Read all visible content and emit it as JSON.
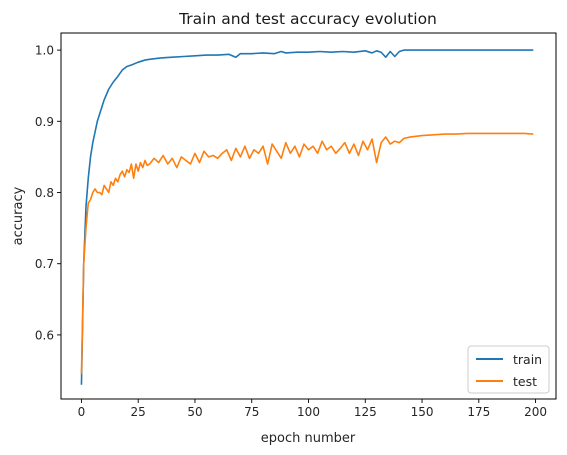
{
  "chart_data": {
    "type": "line",
    "title": "Train and test accuracy evolution",
    "xlabel": "epoch number",
    "ylabel": "accuracy",
    "xlim": [
      -9,
      209
    ],
    "ylim": [
      0.51,
      1.024
    ],
    "x_ticks": [
      0,
      25,
      50,
      75,
      100,
      125,
      150,
      175,
      200
    ],
    "y_ticks": [
      0.6,
      0.7,
      0.8,
      0.9,
      1.0
    ],
    "x_tick_labels": [
      "0",
      "25",
      "50",
      "75",
      "100",
      "125",
      "150",
      "175",
      "200"
    ],
    "y_tick_labels": [
      "0.6",
      "0.7",
      "0.8",
      "0.9",
      "1.0"
    ],
    "grid": false,
    "legend_position": "bottom-right",
    "series": [
      {
        "name": "train",
        "color": "#1f77b4",
        "x": [
          0,
          1,
          2,
          3,
          4,
          5,
          6,
          7,
          8,
          9,
          10,
          12,
          14,
          16,
          18,
          20,
          22,
          25,
          28,
          30,
          35,
          40,
          45,
          50,
          55,
          60,
          65,
          68,
          70,
          75,
          80,
          85,
          88,
          90,
          95,
          100,
          105,
          110,
          115,
          120,
          125,
          128,
          130,
          132,
          134,
          136,
          138,
          140,
          142,
          145,
          150,
          160,
          170,
          180,
          190,
          199
        ],
        "values": [
          0.53,
          0.7,
          0.78,
          0.82,
          0.85,
          0.87,
          0.885,
          0.9,
          0.91,
          0.92,
          0.93,
          0.945,
          0.955,
          0.963,
          0.972,
          0.977,
          0.979,
          0.983,
          0.986,
          0.987,
          0.989,
          0.99,
          0.991,
          0.992,
          0.993,
          0.993,
          0.994,
          0.99,
          0.995,
          0.995,
          0.996,
          0.995,
          0.998,
          0.996,
          0.997,
          0.997,
          0.998,
          0.997,
          0.998,
          0.997,
          0.999,
          0.996,
          0.999,
          0.997,
          0.99,
          0.998,
          0.991,
          0.998,
          1.0,
          1.0,
          1.0,
          1.0,
          1.0,
          1.0,
          1.0,
          1.0
        ]
      },
      {
        "name": "test",
        "color": "#ff7f0e",
        "x": [
          0,
          1,
          2,
          3,
          4,
          5,
          6,
          7,
          8,
          9,
          10,
          11,
          12,
          13,
          14,
          15,
          16,
          17,
          18,
          19,
          20,
          21,
          22,
          23,
          24,
          25,
          26,
          27,
          28,
          29,
          30,
          32,
          34,
          36,
          38,
          40,
          42,
          44,
          46,
          48,
          50,
          52,
          54,
          56,
          58,
          60,
          62,
          64,
          66,
          68,
          70,
          72,
          74,
          76,
          78,
          80,
          82,
          84,
          86,
          88,
          90,
          92,
          94,
          96,
          98,
          100,
          102,
          104,
          106,
          108,
          110,
          112,
          114,
          116,
          118,
          120,
          122,
          124,
          126,
          128,
          130,
          132,
          134,
          136,
          138,
          140,
          142,
          145,
          150,
          155,
          160,
          165,
          170,
          175,
          180,
          185,
          190,
          195,
          199
        ],
        "values": [
          0.545,
          0.7,
          0.75,
          0.785,
          0.79,
          0.8,
          0.805,
          0.8,
          0.8,
          0.797,
          0.81,
          0.805,
          0.8,
          0.815,
          0.81,
          0.82,
          0.815,
          0.825,
          0.83,
          0.822,
          0.832,
          0.828,
          0.84,
          0.82,
          0.84,
          0.83,
          0.842,
          0.835,
          0.845,
          0.838,
          0.84,
          0.848,
          0.842,
          0.852,
          0.84,
          0.848,
          0.835,
          0.85,
          0.845,
          0.84,
          0.855,
          0.842,
          0.858,
          0.85,
          0.852,
          0.848,
          0.855,
          0.86,
          0.845,
          0.862,
          0.85,
          0.865,
          0.848,
          0.86,
          0.855,
          0.865,
          0.84,
          0.868,
          0.858,
          0.848,
          0.87,
          0.855,
          0.865,
          0.85,
          0.868,
          0.86,
          0.865,
          0.855,
          0.872,
          0.86,
          0.865,
          0.855,
          0.862,
          0.87,
          0.855,
          0.868,
          0.852,
          0.872,
          0.86,
          0.875,
          0.842,
          0.87,
          0.878,
          0.868,
          0.872,
          0.87,
          0.876,
          0.878,
          0.88,
          0.881,
          0.882,
          0.882,
          0.883,
          0.883,
          0.883,
          0.883,
          0.883,
          0.883,
          0.882
        ]
      }
    ]
  }
}
